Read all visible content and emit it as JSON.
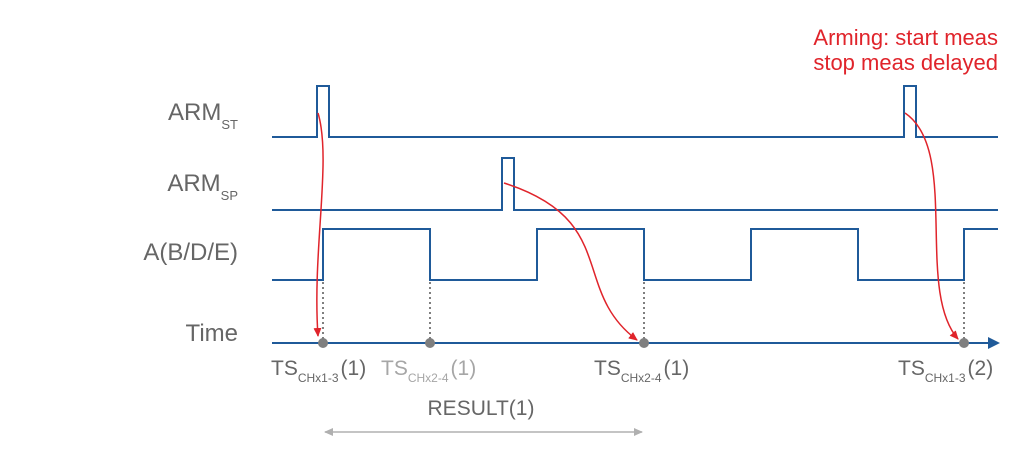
{
  "signals": {
    "arm_st": {
      "main": "ARM",
      "sub": "ST"
    },
    "arm_sp": {
      "main": "ARM",
      "sub": "SP"
    },
    "a": {
      "main": "A(B/D/E)"
    },
    "time": {
      "main": "Time"
    }
  },
  "timestamps": [
    {
      "main": "TS",
      "sub": "CHx1-3",
      "suffix": "(1)"
    },
    {
      "main": "TS",
      "sub": "CHx2-4",
      "suffix": "(1)"
    },
    {
      "main": "TS",
      "sub": "CHx2-4",
      "suffix": "(1)"
    },
    {
      "main": "TS",
      "sub": "CHx1-3",
      "suffix": "(2)"
    }
  ],
  "result_label": "RESULT(1)",
  "annotation": {
    "line1": "Arming: start meas",
    "line2": "stop meas delayed"
  },
  "colors": {
    "signal": "#1f5a99",
    "arrow": "#e0242b",
    "marker": "#7f7f7f",
    "text": "#666666",
    "muted": "#a6a6a6",
    "annotation": "#e0242b"
  }
}
